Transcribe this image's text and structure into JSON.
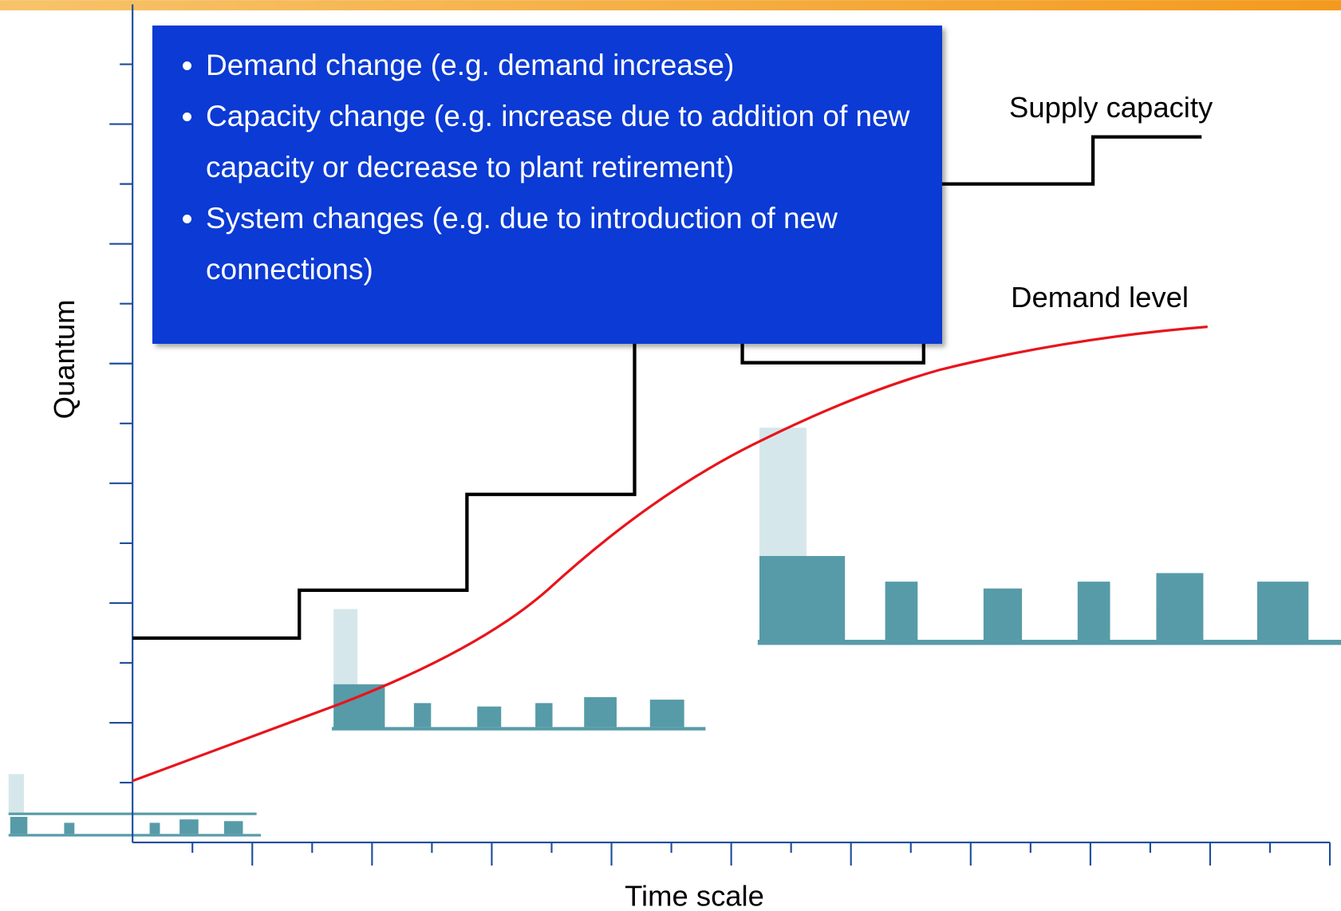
{
  "bullets": [
    "Demand change (e.g.  demand increase)",
    "Capacity change (e.g. increase due to addition of new capacity or decrease to plant retirement)",
    "System changes (e.g. due to introduction of new connections)"
  ],
  "labels": {
    "supply": "Supply capacity",
    "demand": "Demand level",
    "y_axis": "Quantum",
    "x_axis": "Time scale"
  }
}
